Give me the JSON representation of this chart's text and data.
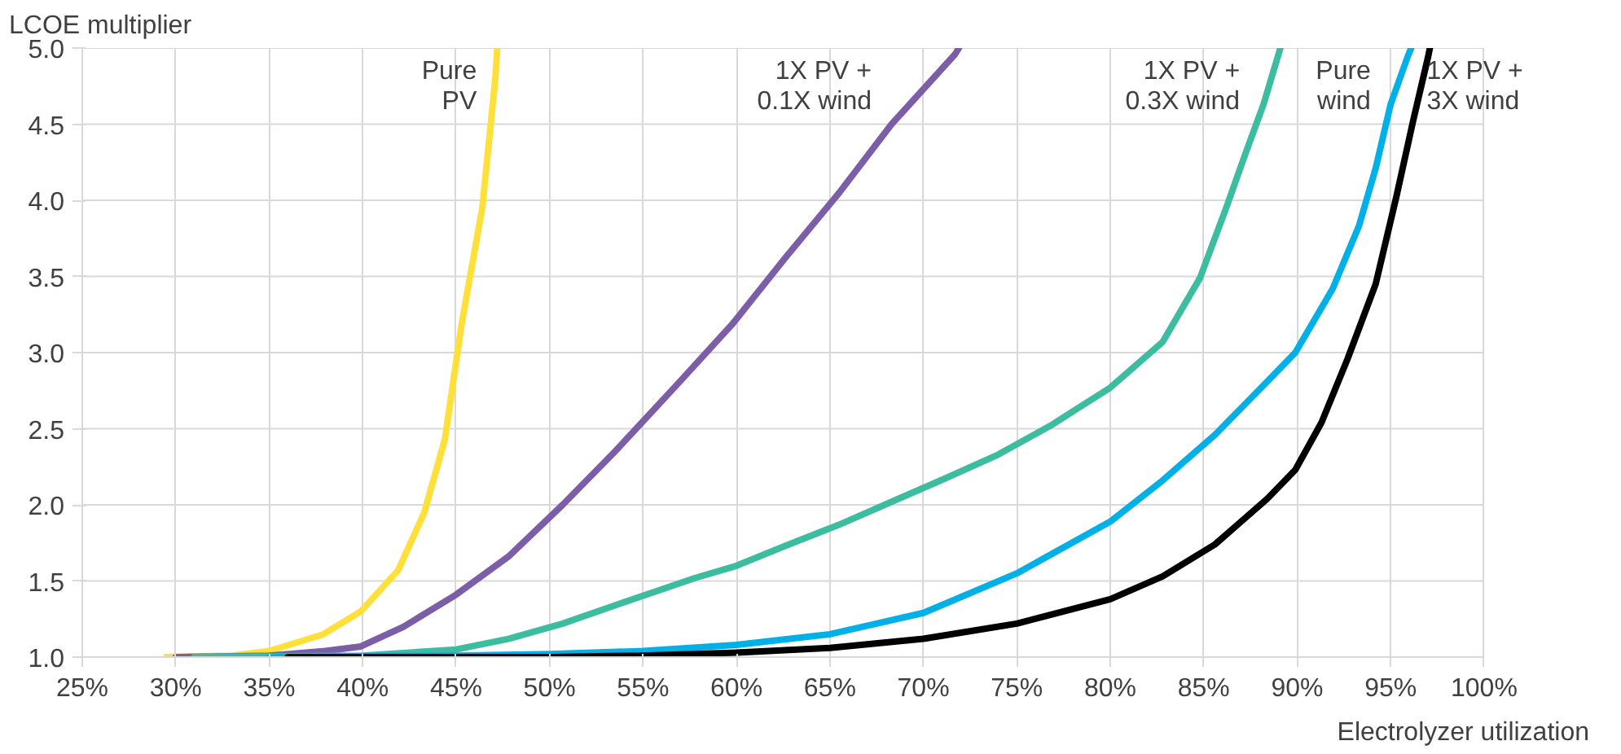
{
  "chart_data": {
    "type": "line",
    "ylabel": "LCOE multiplier",
    "xlabel": "Electrolyzer utilization",
    "xlim": [
      25,
      100
    ],
    "ylim": [
      1,
      5
    ],
    "xticks": [
      {
        "value": 25,
        "label": "25%"
      },
      {
        "value": 30,
        "label": "30%"
      },
      {
        "value": 35,
        "label": "35%"
      },
      {
        "value": 40,
        "label": "40%"
      },
      {
        "value": 45,
        "label": "45%"
      },
      {
        "value": 50,
        "label": "50%"
      },
      {
        "value": 55,
        "label": "55%"
      },
      {
        "value": 60,
        "label": "60%"
      },
      {
        "value": 65,
        "label": "65%"
      },
      {
        "value": 70,
        "label": "70%"
      },
      {
        "value": 75,
        "label": "75%"
      },
      {
        "value": 80,
        "label": "80%"
      },
      {
        "value": 85,
        "label": "85%"
      },
      {
        "value": 90,
        "label": "90%"
      },
      {
        "value": 95,
        "label": "95%"
      },
      {
        "value": 100,
        "label": "100%"
      }
    ],
    "yticks": [
      {
        "value": 1,
        "label": "1.0"
      },
      {
        "value": 1.5,
        "label": "1.5"
      },
      {
        "value": 2,
        "label": "2.0"
      },
      {
        "value": 2.5,
        "label": "2.5"
      },
      {
        "value": 3,
        "label": "3.0"
      },
      {
        "value": 3.5,
        "label": "3.5"
      },
      {
        "value": 4,
        "label": "4.0"
      },
      {
        "value": 4.5,
        "label": "4.5"
      },
      {
        "value": 5,
        "label": "5.0"
      }
    ],
    "grid": true,
    "legend": false,
    "marker": "none",
    "line_style": "solid",
    "series": [
      {
        "name": "Pure PV",
        "color": "#ffe03a",
        "x": [
          29.5,
          33,
          35,
          37.9,
          39.9,
          41.9,
          43.3,
          44.4,
          45.3,
          46.4,
          47.1,
          47.2
        ],
        "values": [
          1.0,
          1.01,
          1.04,
          1.15,
          1.3,
          1.57,
          1.95,
          2.43,
          3.19,
          3.95,
          4.8,
          5.0
        ]
      },
      {
        "name": "1X PV + 0.1X wind",
        "color": "#7b5ea7",
        "x": [
          30,
          35,
          38,
          39.9,
          42.2,
          45,
          47.8,
          50.7,
          53.5,
          56.9,
          59.8,
          62.6,
          65.5,
          68.3,
          71.7,
          71.9
        ],
        "values": [
          1.0,
          1.01,
          1.04,
          1.07,
          1.2,
          1.41,
          1.66,
          2.0,
          2.35,
          2.8,
          3.19,
          3.62,
          4.05,
          4.5,
          4.96,
          5.0
        ]
      },
      {
        "name": "1X PV + 0.3X wind",
        "color": "#3dbda0",
        "x": [
          31,
          40,
          45,
          47.8,
          50.7,
          53.5,
          57.8,
          60,
          62.6,
          65.5,
          68.3,
          71.1,
          74,
          76.8,
          80,
          82.8,
          84.8,
          86.2,
          87.3,
          88.2,
          89.1
        ],
        "values": [
          1.0,
          1.01,
          1.05,
          1.12,
          1.22,
          1.34,
          1.52,
          1.6,
          1.73,
          1.87,
          2.02,
          2.17,
          2.33,
          2.52,
          2.77,
          3.07,
          3.49,
          3.95,
          4.33,
          4.63,
          5.0
        ]
      },
      {
        "name": "Pure wind",
        "color": "#00b0e6",
        "x": [
          35,
          45,
          50,
          55,
          60,
          65,
          70,
          75,
          80,
          82.8,
          85.6,
          88.4,
          89.9,
          91.9,
          93.3,
          94.2,
          95,
          95.9,
          96.1
        ],
        "values": [
          1.0,
          1.01,
          1.02,
          1.04,
          1.08,
          1.15,
          1.29,
          1.55,
          1.89,
          2.16,
          2.46,
          2.81,
          3.0,
          3.42,
          3.83,
          4.21,
          4.63,
          4.94,
          5.0
        ]
      },
      {
        "name": "1X PV + 3X wind",
        "color": "#000000",
        "x": [
          36,
          50,
          55,
          60,
          65,
          70,
          75,
          80,
          82.8,
          85.6,
          88.4,
          89.9,
          91.3,
          92.7,
          94.2,
          95.3,
          96.2,
          97.0,
          97.1
        ],
        "values": [
          1.0,
          1.0,
          1.01,
          1.03,
          1.06,
          1.12,
          1.22,
          1.38,
          1.53,
          1.74,
          2.04,
          2.23,
          2.54,
          2.96,
          3.45,
          4.02,
          4.52,
          4.94,
          5.0
        ]
      }
    ]
  }
}
